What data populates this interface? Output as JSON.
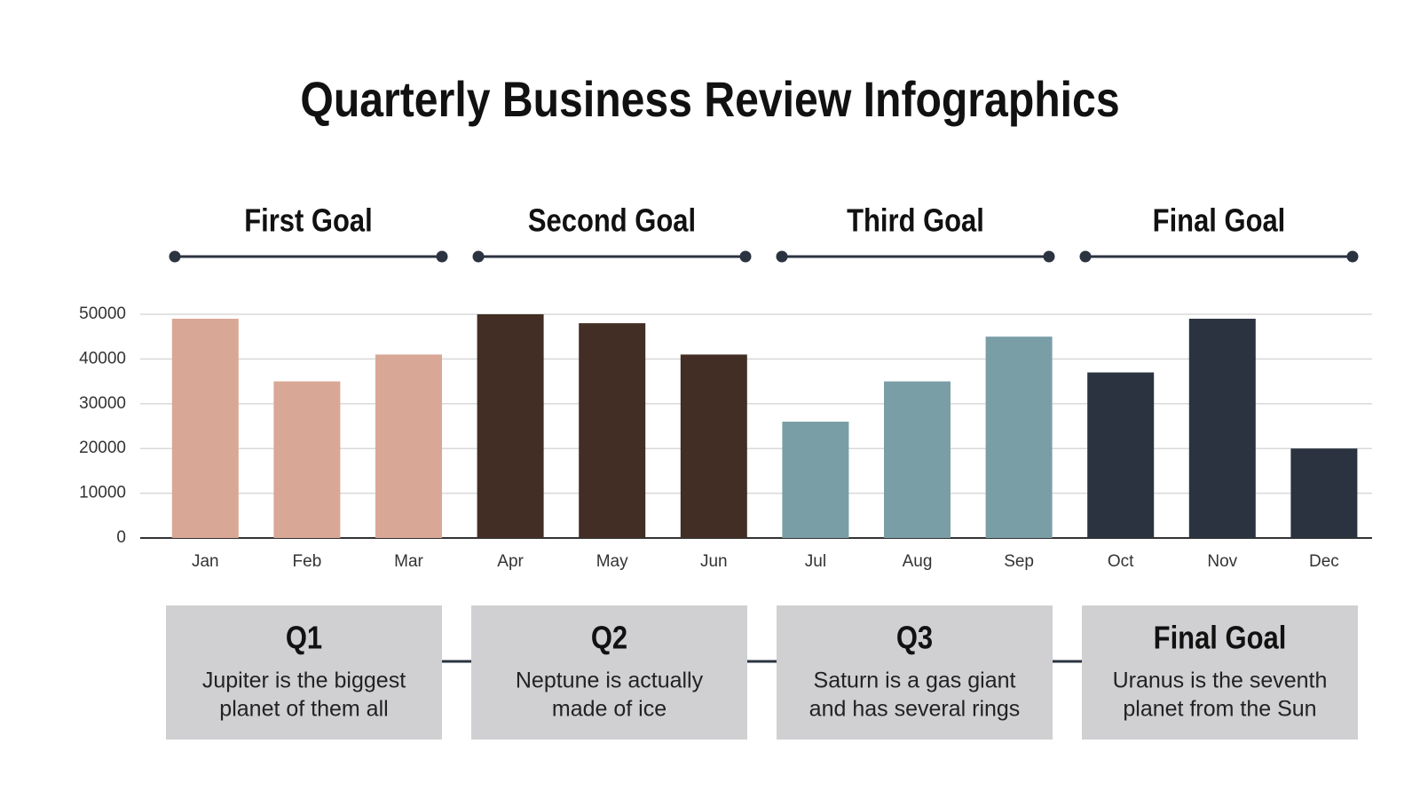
{
  "title": "Quarterly Business Review Infographics",
  "chart_data": {
    "type": "bar",
    "categories": [
      "Jan",
      "Feb",
      "Mar",
      "Apr",
      "May",
      "Jun",
      "Jul",
      "Aug",
      "Sep",
      "Oct",
      "Nov",
      "Dec"
    ],
    "values": [
      49000,
      35000,
      41000,
      50000,
      48000,
      41000,
      26000,
      35000,
      45000,
      37000,
      49000,
      20000
    ],
    "colors": [
      "#d9a796",
      "#d9a796",
      "#d9a796",
      "#422e24",
      "#422e24",
      "#422e24",
      "#7a9ea6",
      "#7a9ea6",
      "#7a9ea6",
      "#2b3340",
      "#2b3340",
      "#2b3340"
    ],
    "ylim": [
      0,
      50000
    ],
    "yticks": [
      0,
      10000,
      20000,
      30000,
      40000,
      50000
    ],
    "grid": true
  },
  "goals": [
    {
      "title": "First Goal",
      "label": "Q1",
      "lines": [
        "Jupiter is the biggest",
        "planet of them all"
      ]
    },
    {
      "title": "Second Goal",
      "label": "Q2",
      "lines": [
        "Neptune is actually",
        "made of ice"
      ]
    },
    {
      "title": "Third Goal",
      "label": "Q3",
      "lines": [
        "Saturn is a gas giant",
        "and has several rings"
      ]
    },
    {
      "title": "Final Goal",
      "label": "Final Goal",
      "lines": [
        "Uranus is the seventh",
        "planet from the Sun"
      ]
    }
  ]
}
